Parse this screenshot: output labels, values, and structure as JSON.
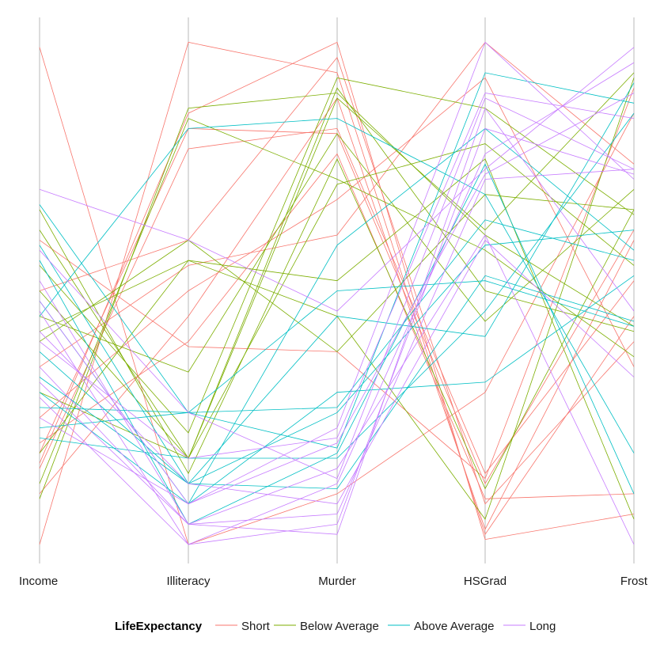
{
  "chart_data": {
    "type": "parallel_coordinates",
    "axes": [
      "Income",
      "Illiteracy",
      "Murder",
      "HSGrad",
      "Frost"
    ],
    "scale": "each axis scaled 0 (bottom) to 1 (top)",
    "ylim": [
      0,
      1
    ],
    "grid": false,
    "legend": {
      "title": "LifeExpectancy",
      "position": "bottom",
      "entries": [
        "Short",
        "Below Average",
        "Above Average",
        "Long"
      ]
    },
    "colors": {
      "Short": "#F8766D",
      "Below Average": "#7CAE00",
      "Above Average": "#00BFC4",
      "Long": "#C77CFF"
    },
    "series": [
      {
        "group": "Short",
        "lines": [
          [
            0.98,
            0.0,
            0.1,
            0.3,
            0.85
          ],
          [
            0.0,
            0.99,
            0.93,
            0.02,
            0.45
          ],
          [
            0.18,
            0.82,
            0.81,
            0.12,
            0.62
          ],
          [
            0.15,
            0.78,
            0.82,
            0.14,
            0.52
          ],
          [
            0.16,
            0.85,
            0.99,
            0.01,
            0.06
          ],
          [
            0.35,
            0.55,
            0.61,
            0.99,
            0.75
          ],
          [
            0.2,
            0.4,
            0.77,
            0.09,
            0.1
          ],
          [
            0.1,
            0.45,
            0.88,
            0.03,
            0.6
          ],
          [
            0.25,
            0.5,
            0.68,
            0.92,
            0.35
          ],
          [
            0.6,
            0.39,
            0.38,
            0.13,
            0.9
          ],
          [
            0.5,
            0.6,
            0.96,
            0.08,
            0.4
          ]
        ]
      },
      {
        "group": "Below Average",
        "lines": [
          [
            0.62,
            0.17,
            0.9,
            0.5,
            0.42
          ],
          [
            0.55,
            0.22,
            0.92,
            0.86,
            0.65
          ],
          [
            0.5,
            0.17,
            0.88,
            0.62,
            0.93
          ],
          [
            0.45,
            0.34,
            0.81,
            0.44,
            0.7
          ],
          [
            0.42,
            0.56,
            0.45,
            0.05,
            0.92
          ],
          [
            0.12,
            0.84,
            0.72,
            0.58,
            0.37
          ],
          [
            0.66,
            0.14,
            0.76,
            0.11,
            0.66
          ],
          [
            0.18,
            0.56,
            0.52,
            0.76,
            0.05
          ],
          [
            0.09,
            0.86,
            0.89,
            0.61,
            0.43
          ],
          [
            0.4,
            0.6,
            0.38,
            0.69,
            0.66
          ],
          [
            0.3,
            0.17,
            0.71,
            0.79,
            0.55
          ]
        ]
      },
      {
        "group": "Above Average",
        "lines": [
          [
            0.67,
            0.26,
            0.19,
            0.93,
            0.87
          ],
          [
            0.27,
            0.26,
            0.5,
            0.52,
            0.43
          ],
          [
            0.59,
            0.12,
            0.11,
            0.53,
            0.44
          ],
          [
            0.45,
            0.82,
            0.84,
            0.69,
            0.18
          ],
          [
            0.3,
            0.08,
            0.59,
            0.82,
            0.58
          ],
          [
            0.21,
            0.17,
            0.17,
            0.46,
            0.85
          ],
          [
            0.38,
            0.12,
            0.45,
            0.41,
            0.91
          ],
          [
            0.56,
            0.04,
            0.18,
            0.75,
            0.1
          ],
          [
            0.48,
            0.08,
            0.3,
            0.32,
            0.53
          ],
          [
            0.23,
            0.26,
            0.27,
            0.64,
            0.56
          ],
          [
            0.33,
            0.12,
            0.26,
            0.59,
            0.62
          ]
        ]
      },
      {
        "group": "Long",
        "lines": [
          [
            0.7,
            0.6,
            0.46,
            0.74,
            0.98
          ],
          [
            0.58,
            0.26,
            0.13,
            0.88,
            0.74
          ],
          [
            0.48,
            0.08,
            0.2,
            0.73,
            0.89
          ],
          [
            0.35,
            0.04,
            0.02,
            0.86,
            0.46
          ],
          [
            0.46,
            0.0,
            0.12,
            0.77,
            0.95
          ],
          [
            0.32,
            0.04,
            0.15,
            0.61,
            0.0
          ],
          [
            0.25,
            0.08,
            0.23,
            0.99,
            0.72
          ],
          [
            0.42,
            0.12,
            0.08,
            0.6,
            0.33
          ],
          [
            0.52,
            0.04,
            0.06,
            0.72,
            0.74
          ],
          [
            0.4,
            0.17,
            0.21,
            0.89,
            0.84
          ],
          [
            0.29,
            0.0,
            0.04,
            0.82,
            0.73
          ]
        ]
      }
    ]
  }
}
